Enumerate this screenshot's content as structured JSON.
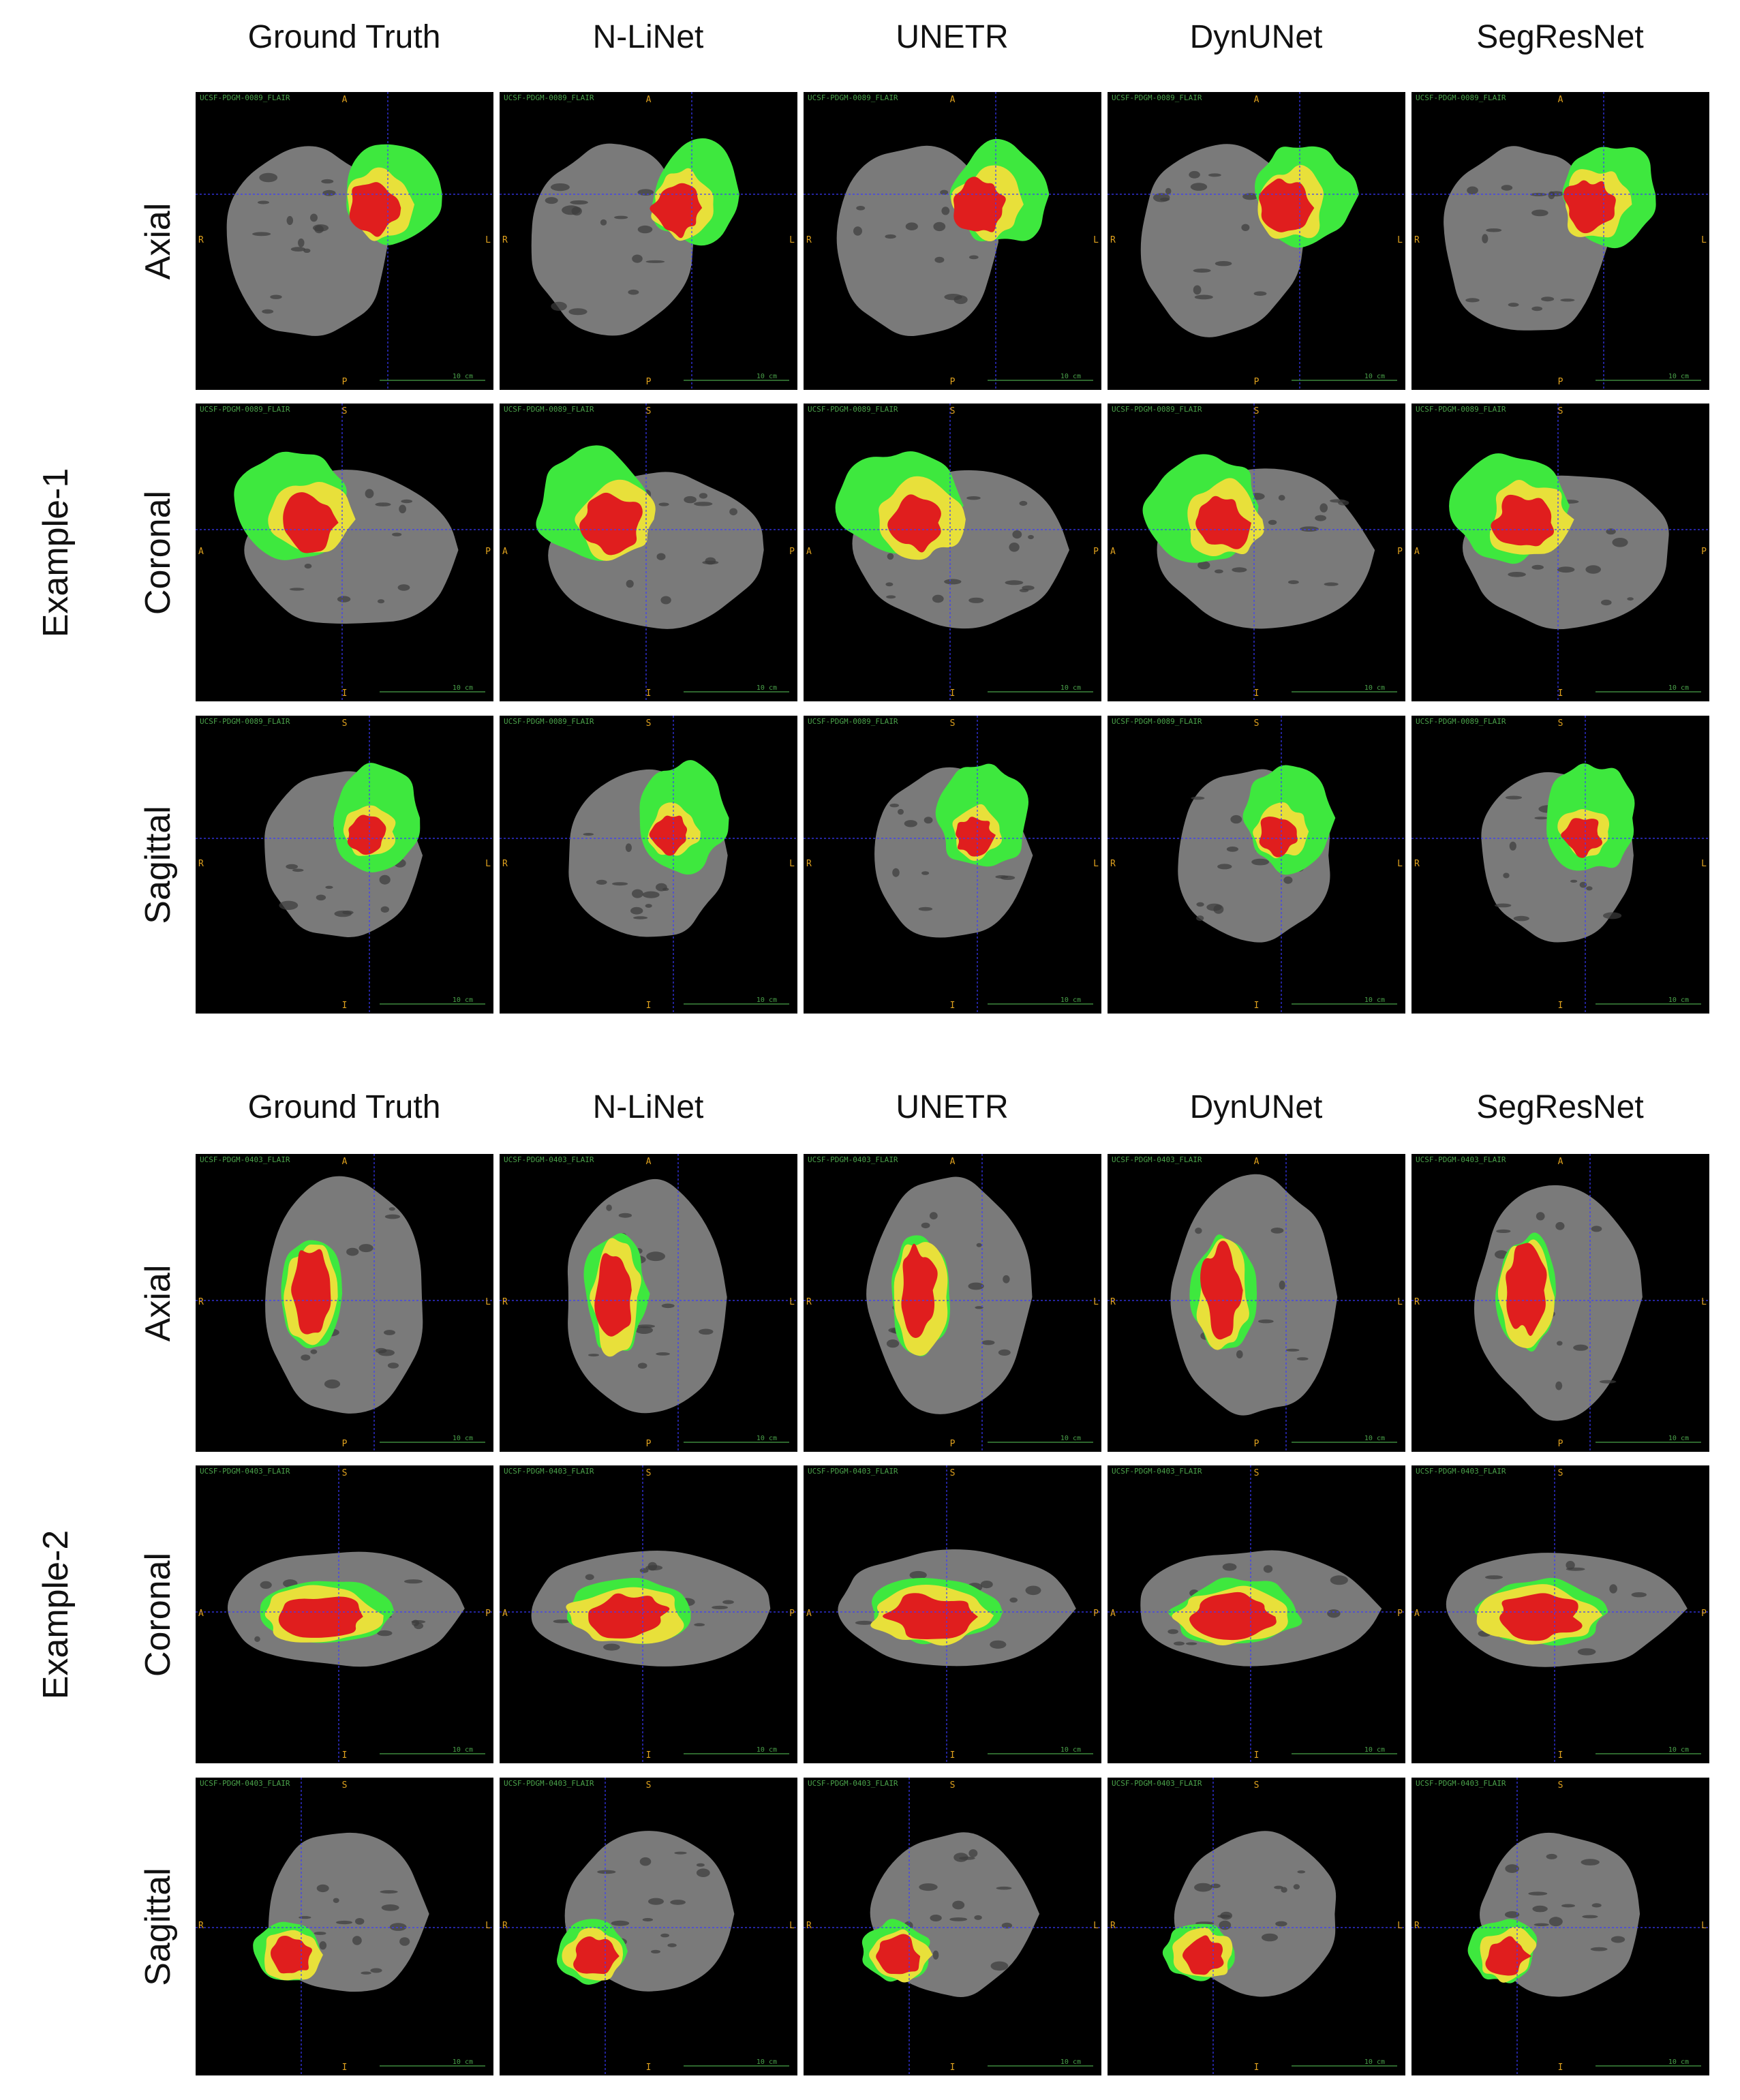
{
  "columns": [
    "Ground Truth",
    "N-LiNet",
    "UNETR",
    "DynUNet",
    "SegResNet"
  ],
  "rows": [
    "Axial",
    "Coronal",
    "Sagittal"
  ],
  "examples": [
    {
      "label": "Example-1",
      "ids": [
        "UCSF-PDGM-0089_FLAIR",
        "UCSF-PDGM-0089_FLAIR",
        "UCSF-PDGM-0089_FLAIR"
      ],
      "orientation": {
        "Axial": {
          "top": "A",
          "bottom": "P",
          "left": "R",
          "right": "L"
        },
        "Coronal": {
          "top": "S",
          "bottom": "I",
          "left": "A",
          "right": "P"
        },
        "Sagittal": {
          "top": "S",
          "bottom": "I",
          "left": "R",
          "right": "L"
        }
      }
    },
    {
      "label": "Example-2",
      "ids": [
        "UCSF-PDGM-0403_FLAIR",
        "UCSF-PDGM-0403_FLAIR",
        "UCSF-PDGM-0403_FLAIR"
      ],
      "orientation": {
        "Axial": {
          "top": "A",
          "bottom": "P",
          "left": "R",
          "right": "L"
        },
        "Coronal": {
          "top": "S",
          "bottom": "I",
          "left": "A",
          "right": "P"
        },
        "Sagittal": {
          "top": "S",
          "bottom": "I",
          "left": "R",
          "right": "L"
        }
      }
    }
  ],
  "scale_label": "10 cm",
  "colors": {
    "background": "#000000",
    "brain": "#7a7a7a",
    "edema": "#3ee83e",
    "enhancing": "#e8e03a",
    "necrosis": "#e01e1e",
    "crosshair": "#3a3aff",
    "orientation_text": "#e0a21e",
    "info_text": "#4aa24a"
  }
}
